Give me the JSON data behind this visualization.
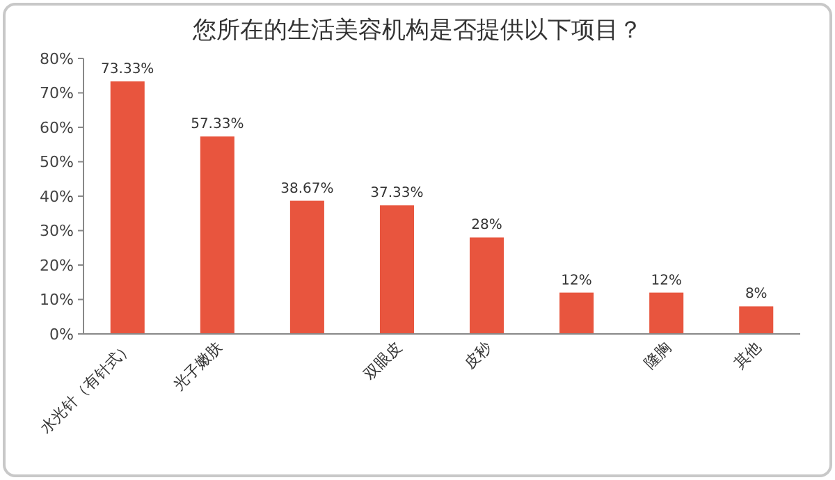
{
  "chart_data": {
    "type": "bar",
    "title": "您所在的生活美容机构是否提供以下项目？",
    "categories": [
      "水光针（有针式）",
      "光子嫩肤",
      null,
      "双眼皮",
      "皮秒",
      null,
      "隆胸",
      "其他"
    ],
    "values": [
      73.33,
      57.33,
      38.67,
      37.33,
      28,
      12,
      12,
      8
    ],
    "value_labels": [
      "73.33%",
      "57.33%",
      "38.67%",
      "37.33%",
      "28%",
      "12%",
      "12%",
      "8%"
    ],
    "color": "#e8553e",
    "ylim": [
      0,
      80
    ],
    "yticks": [
      {
        "value": 0,
        "label": "0%"
      },
      {
        "value": 10,
        "label": "10%"
      },
      {
        "value": 20,
        "label": "20%"
      },
      {
        "value": 30,
        "label": "30%"
      },
      {
        "value": 40,
        "label": "40%"
      },
      {
        "value": 50,
        "label": "50%"
      },
      {
        "value": 60,
        "label": "60%"
      },
      {
        "value": 70,
        "label": "70%"
      },
      {
        "value": 80,
        "label": "80%"
      }
    ],
    "grid": false
  }
}
